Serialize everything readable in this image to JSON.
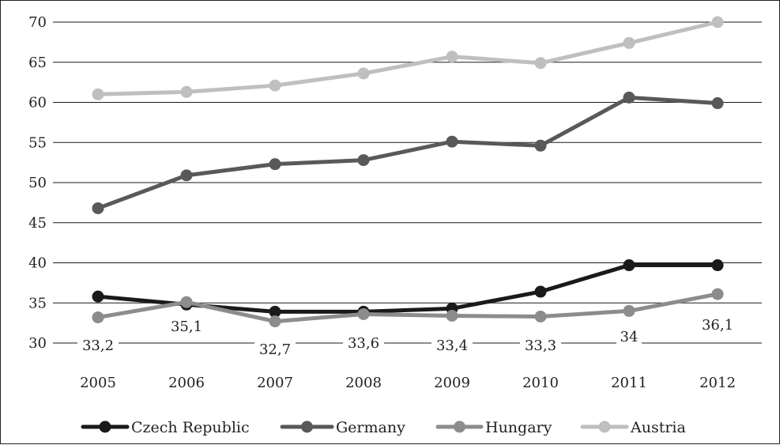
{
  "chart_data": {
    "type": "line",
    "title": "",
    "xlabel": "",
    "ylabel": "",
    "categories": [
      "2005",
      "2006",
      "2007",
      "2008",
      "2009",
      "2010",
      "2011",
      "2012"
    ],
    "ylim": [
      30,
      70
    ],
    "yticks": [
      30,
      35,
      40,
      45,
      50,
      55,
      60,
      65,
      70
    ],
    "grid": "horizontal",
    "legend_position": "bottom",
    "series": [
      {
        "name": "Czech Republic",
        "color": "#1a1a1a",
        "values": [
          35.8,
          34.8,
          33.9,
          33.9,
          34.3,
          36.4,
          39.7,
          39.7
        ]
      },
      {
        "name": "Germany",
        "color": "#595959",
        "values": [
          46.8,
          50.9,
          52.3,
          52.8,
          55.1,
          54.6,
          60.6,
          59.9
        ]
      },
      {
        "name": "Hungary",
        "color": "#8c8c8c",
        "values": [
          33.2,
          35.1,
          32.7,
          33.6,
          33.4,
          33.3,
          34,
          36.1
        ],
        "data_labels": [
          "33,2",
          "35,1",
          "32,7",
          "33,6",
          "33,4",
          "33,3",
          "34",
          "36,1"
        ]
      },
      {
        "name": "Austria",
        "color": "#bfbfbf",
        "values": [
          61,
          61.3,
          62.1,
          63.6,
          65.7,
          64.9,
          67.4,
          70
        ]
      }
    ]
  }
}
